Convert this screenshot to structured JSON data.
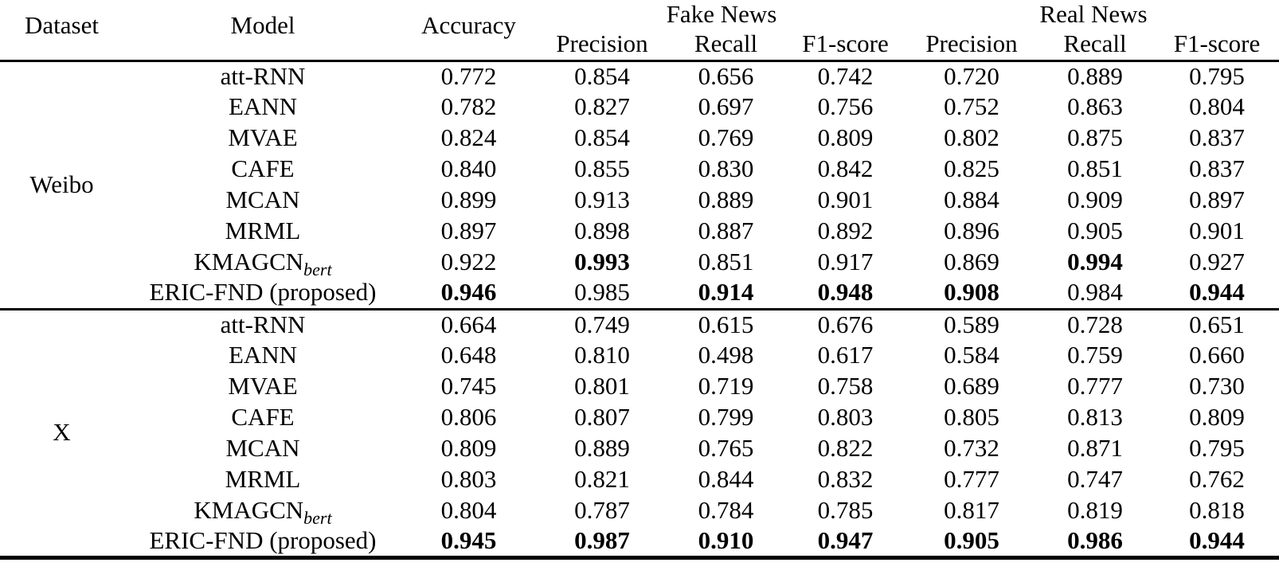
{
  "colors": {
    "background": "#ffffff",
    "text": "#000000",
    "rule": "#000000"
  },
  "table": {
    "headers": {
      "dataset": "Dataset",
      "model": "Model",
      "accuracy": "Accuracy",
      "fake_group": "Fake News",
      "real_group": "Real News",
      "precision": "Precision",
      "recall": "Recall",
      "f1": "F1-score"
    },
    "sections": [
      {
        "dataset": "Weibo",
        "rows": [
          {
            "model": "att-RNN",
            "values": [
              "0.772",
              "0.854",
              "0.656",
              "0.742",
              "0.720",
              "0.889",
              "0.795"
            ],
            "bold": []
          },
          {
            "model": "EANN",
            "values": [
              "0.782",
              "0.827",
              "0.697",
              "0.756",
              "0.752",
              "0.863",
              "0.804"
            ],
            "bold": []
          },
          {
            "model": "MVAE",
            "values": [
              "0.824",
              "0.854",
              "0.769",
              "0.809",
              "0.802",
              "0.875",
              "0.837"
            ],
            "bold": []
          },
          {
            "model": "CAFE",
            "values": [
              "0.840",
              "0.855",
              "0.830",
              "0.842",
              "0.825",
              "0.851",
              "0.837"
            ],
            "bold": []
          },
          {
            "model": "MCAN",
            "values": [
              "0.899",
              "0.913",
              "0.889",
              "0.901",
              "0.884",
              "0.909",
              "0.897"
            ],
            "bold": []
          },
          {
            "model": "MRML",
            "values": [
              "0.897",
              "0.898",
              "0.887",
              "0.892",
              "0.896",
              "0.905",
              "0.901"
            ],
            "bold": []
          },
          {
            "model": "KMAGCN",
            "model_sub": "bert",
            "values": [
              "0.922",
              "0.993",
              "0.851",
              "0.917",
              "0.869",
              "0.994",
              "0.927"
            ],
            "bold": [
              1,
              5
            ]
          },
          {
            "model": "ERIC-FND (proposed)",
            "values": [
              "0.946",
              "0.985",
              "0.914",
              "0.948",
              "0.908",
              "0.984",
              "0.944"
            ],
            "bold": [
              0,
              2,
              3,
              4,
              6
            ]
          }
        ]
      },
      {
        "dataset": "X",
        "rows": [
          {
            "model": "att-RNN",
            "values": [
              "0.664",
              "0.749",
              "0.615",
              "0.676",
              "0.589",
              "0.728",
              "0.651"
            ],
            "bold": []
          },
          {
            "model": "EANN",
            "values": [
              "0.648",
              "0.810",
              "0.498",
              "0.617",
              "0.584",
              "0.759",
              "0.660"
            ],
            "bold": []
          },
          {
            "model": "MVAE",
            "values": [
              "0.745",
              "0.801",
              "0.719",
              "0.758",
              "0.689",
              "0.777",
              "0.730"
            ],
            "bold": []
          },
          {
            "model": "CAFE",
            "values": [
              "0.806",
              "0.807",
              "0.799",
              "0.803",
              "0.805",
              "0.813",
              "0.809"
            ],
            "bold": []
          },
          {
            "model": "MCAN",
            "values": [
              "0.809",
              "0.889",
              "0.765",
              "0.822",
              "0.732",
              "0.871",
              "0.795"
            ],
            "bold": []
          },
          {
            "model": "MRML",
            "values": [
              "0.803",
              "0.821",
              "0.844",
              "0.832",
              "0.777",
              "0.747",
              "0.762"
            ],
            "bold": []
          },
          {
            "model": "KMAGCN",
            "model_sub": "bert",
            "values": [
              "0.804",
              "0.787",
              "0.784",
              "0.785",
              "0.817",
              "0.819",
              "0.818"
            ],
            "bold": []
          },
          {
            "model": "ERIC-FND (proposed)",
            "values": [
              "0.945",
              "0.987",
              "0.910",
              "0.947",
              "0.905",
              "0.986",
              "0.944"
            ],
            "bold": [
              0,
              1,
              2,
              3,
              4,
              5,
              6
            ]
          }
        ]
      }
    ]
  }
}
